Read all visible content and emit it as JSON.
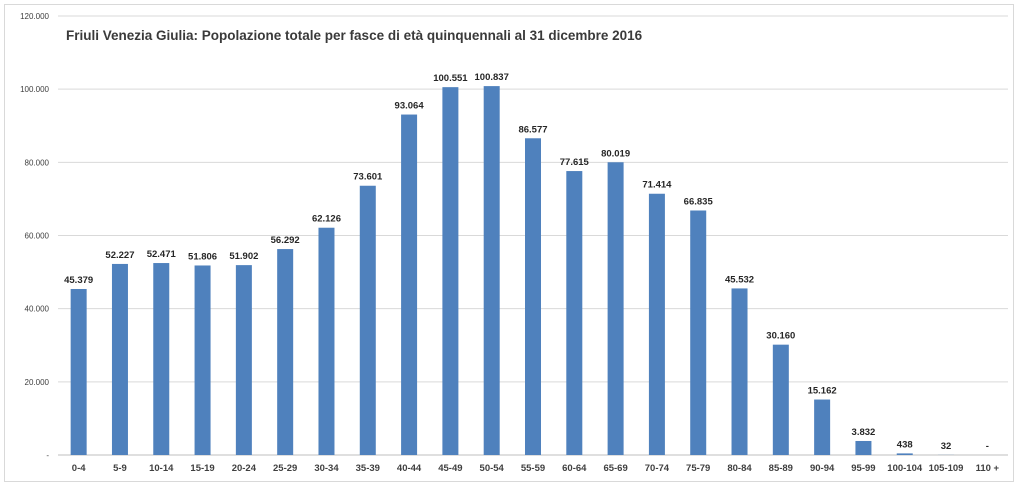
{
  "chart_data": {
    "type": "bar",
    "title": "Friuli Venezia Giulia: Popolazione totale per fasce di età quinquennali al 31 dicembre 2016",
    "xlabel": "",
    "ylabel": "",
    "ylim": [
      0,
      120000
    ],
    "yticks": [
      0,
      20000,
      40000,
      60000,
      80000,
      100000,
      120000
    ],
    "ytick_labels": [
      "-",
      "20.000",
      "40.000",
      "60.000",
      "80.000",
      "100.000",
      "120.000"
    ],
    "grid": true,
    "legend": "none",
    "color": "#4f81bd",
    "categories": [
      "0-4",
      "5-9",
      "10-14",
      "15-19",
      "20-24",
      "25-29",
      "30-34",
      "35-39",
      "40-44",
      "45-49",
      "50-54",
      "55-59",
      "60-64",
      "65-69",
      "70-74",
      "75-79",
      "80-84",
      "85-89",
      "90-94",
      "95-99",
      "100-104",
      "105-109",
      "110 +"
    ],
    "values": [
      45379,
      52227,
      52471,
      51806,
      51902,
      56292,
      62126,
      73601,
      93064,
      100551,
      100837,
      86577,
      77615,
      80019,
      71414,
      66835,
      45532,
      30160,
      15162,
      3832,
      438,
      32,
      0
    ],
    "data_labels": [
      "45.379",
      "52.227",
      "52.471",
      "51.806",
      "51.902",
      "56.292",
      "62.126",
      "73.601",
      "93.064",
      "100.551",
      "100.837",
      "86.577",
      "77.615",
      "80.019",
      "71.414",
      "66.835",
      "45.532",
      "30.160",
      "15.162",
      "3.832",
      "438",
      "32",
      "-"
    ]
  }
}
